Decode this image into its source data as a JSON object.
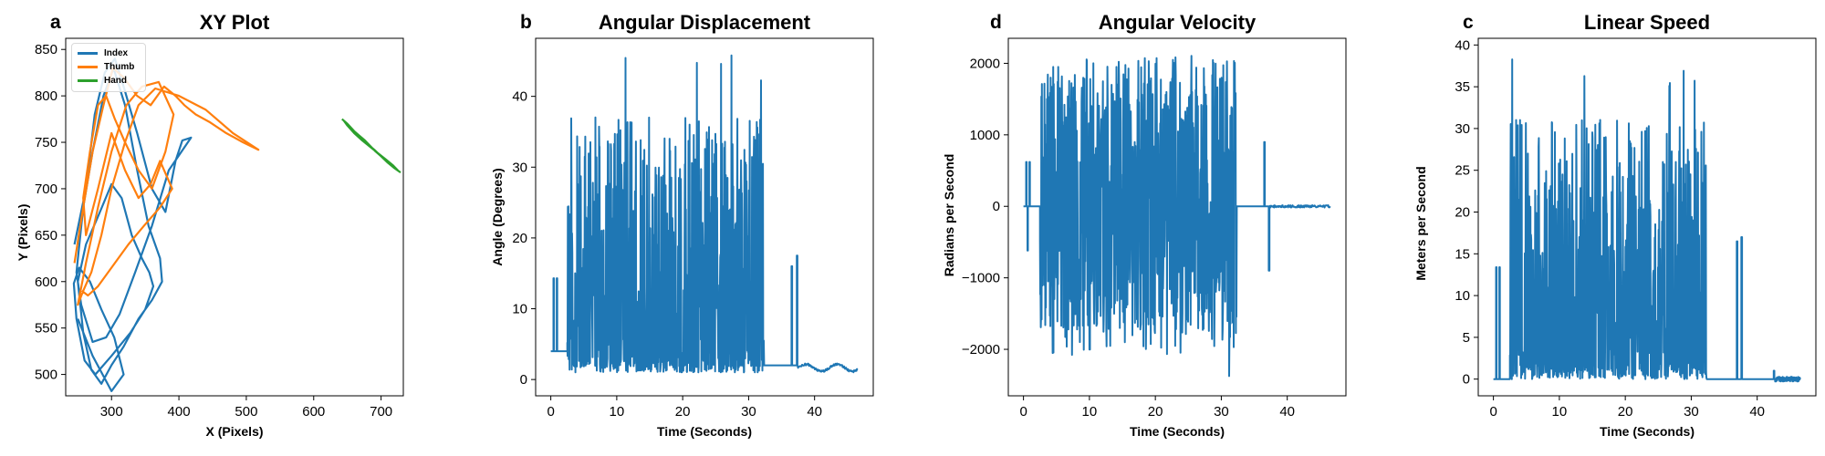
{
  "chart_data": [
    {
      "panel": "a",
      "type": "line",
      "title": "XY Plot",
      "xlabel": "X (Pixels)",
      "ylabel": "Y (Pixels)",
      "xlim": [
        232,
        733
      ],
      "ylim": [
        477,
        862
      ],
      "xticks": [
        300,
        400,
        500,
        600,
        700
      ],
      "yticks": [
        500,
        550,
        600,
        650,
        700,
        750,
        800,
        850
      ],
      "legend_position": "upper-left",
      "series": [
        {
          "name": "Index",
          "color": "#1f77b4",
          "x": [
            245,
            262,
            275,
            290,
            305,
            318,
            338,
            360,
            380,
            395,
            405,
            418,
            385,
            360,
            335,
            312,
            292,
            272,
            255,
            248,
            258,
            272,
            288,
            303,
            320,
            338,
            355,
            372,
            375,
            360,
            340,
            318,
            300,
            285,
            270,
            258,
            250,
            262,
            280,
            300,
            315,
            330,
            345,
            356,
            362,
            350,
            328,
            300,
            276,
            260,
            248,
            244,
            252,
            268,
            285,
            304,
            318,
            300,
            272,
            250
          ],
          "y": [
            640,
            700,
            780,
            825,
            840,
            810,
            760,
            700,
            675,
            730,
            752,
            755,
            720,
            660,
            610,
            565,
            540,
            535,
            575,
            610,
            680,
            740,
            800,
            830,
            790,
            720,
            660,
            625,
            600,
            580,
            560,
            530,
            510,
            490,
            505,
            545,
            600,
            640,
            670,
            705,
            690,
            650,
            625,
            610,
            595,
            570,
            545,
            520,
            500,
            515,
            560,
            598,
            615,
            600,
            570,
            540,
            500,
            482,
            520,
            560
          ]
        },
        {
          "name": "Thumb",
          "color": "#ff7f0e",
          "x": [
            245,
            258,
            272,
            288,
            302,
            318,
            338,
            358,
            378,
            395,
            408,
            425,
            445,
            470,
            495,
            518,
            480,
            440,
            400,
            365,
            340,
            320,
            300,
            285,
            270,
            258,
            250,
            262,
            280,
            300,
            322,
            345,
            370,
            392,
            380,
            360,
            340,
            320,
            305,
            292,
            280,
            268,
            258,
            262,
            280,
            300,
            320,
            340,
            358,
            372,
            390,
            372,
            348,
            325,
            300,
            280,
            265,
            256
          ],
          "y": [
            620,
            680,
            740,
            790,
            830,
            820,
            800,
            790,
            810,
            800,
            790,
            780,
            772,
            760,
            750,
            742,
            760,
            785,
            800,
            808,
            790,
            750,
            700,
            650,
            610,
            590,
            575,
            620,
            680,
            740,
            790,
            810,
            815,
            780,
            740,
            700,
            720,
            750,
            775,
            800,
            790,
            740,
            690,
            650,
            700,
            760,
            720,
            690,
            705,
            730,
            700,
            680,
            660,
            640,
            615,
            595,
            585,
            590
          ]
        },
        {
          "name": "Hand",
          "color": "#2ca02c",
          "x": [
            642,
            650,
            660,
            668,
            676,
            684,
            692,
            700,
            708,
            716,
            724,
            728,
            720,
            710,
            700,
            690,
            680,
            670,
            660,
            652,
            645,
            650,
            660,
            672,
            684,
            696,
            708,
            718,
            726
          ],
          "y": [
            775,
            770,
            762,
            757,
            752,
            746,
            740,
            735,
            730,
            725,
            720,
            718,
            722,
            728,
            735,
            742,
            748,
            755,
            762,
            768,
            773,
            768,
            760,
            752,
            745,
            738,
            731,
            725,
            719
          ]
        }
      ]
    },
    {
      "panel": "b",
      "type": "line",
      "title": "Angular Displacement",
      "xlabel": "Time (Seconds)",
      "ylabel": "Angle (Degrees)",
      "xlim": [
        -2.3,
        48.9
      ],
      "ylim": [
        -2.3,
        48.2
      ],
      "xticks": [
        0,
        10,
        20,
        30,
        40
      ],
      "yticks": [
        0,
        10,
        20,
        30,
        40
      ],
      "color": "#1f77b4",
      "features": {
        "baseline": 4,
        "burst_start": 2.5,
        "burst_end": 32.3,
        "burst_min": 1,
        "burst_max": 46.1,
        "tail_level": 2,
        "end": 46.5,
        "spikes": [
          {
            "x": 0.4,
            "y": 14.3
          },
          {
            "x": 0.9,
            "y": 14.3
          },
          {
            "x": 36.5,
            "y": 16
          },
          {
            "x": 37.3,
            "y": 17.5
          }
        ]
      }
    },
    {
      "panel": "d",
      "type": "line",
      "title": "Angular Velocity",
      "xlabel": "Time (Seconds)",
      "ylabel": "Radians per Second",
      "xlim": [
        -2.3,
        48.9
      ],
      "ylim": [
        -2650,
        2350
      ],
      "xticks": [
        0,
        10,
        20,
        30,
        40
      ],
      "yticks": [
        -2000,
        -1000,
        0,
        1000,
        2000
      ],
      "color": "#1f77b4",
      "features": {
        "baseline": 0,
        "burst_start": 2.5,
        "burst_end": 32.3,
        "burst_min": -2450,
        "burst_max": 2120,
        "tail_level": 0,
        "end": 46.5,
        "spikes": [
          {
            "x": 0.4,
            "y": 620
          },
          {
            "x": 0.6,
            "y": -620
          },
          {
            "x": 0.9,
            "y": 620
          },
          {
            "x": 36.5,
            "y": 900
          },
          {
            "x": 37.2,
            "y": -900
          }
        ]
      }
    },
    {
      "panel": "c",
      "type": "line",
      "title": "Linear Speed",
      "xlabel": "Time (Seconds)",
      "ylabel": "Meters per Second",
      "xlim": [
        -2.3,
        48.9
      ],
      "ylim": [
        -2.0,
        40.8
      ],
      "xticks": [
        0,
        10,
        20,
        30,
        40
      ],
      "yticks": [
        0,
        5,
        10,
        15,
        20,
        25,
        30,
        35,
        40
      ],
      "color": "#1f77b4",
      "features": {
        "baseline": 0,
        "burst_start": 2.5,
        "burst_end": 32.3,
        "burst_min": 0,
        "burst_max": 38.8,
        "tail_level": 0,
        "end": 46.5,
        "spikes": [
          {
            "x": 0.4,
            "y": 13.4
          },
          {
            "x": 0.9,
            "y": 13.4
          },
          {
            "x": 36.9,
            "y": 16.5
          },
          {
            "x": 37.6,
            "y": 17
          },
          {
            "x": 42.5,
            "y": 1
          }
        ]
      }
    }
  ]
}
